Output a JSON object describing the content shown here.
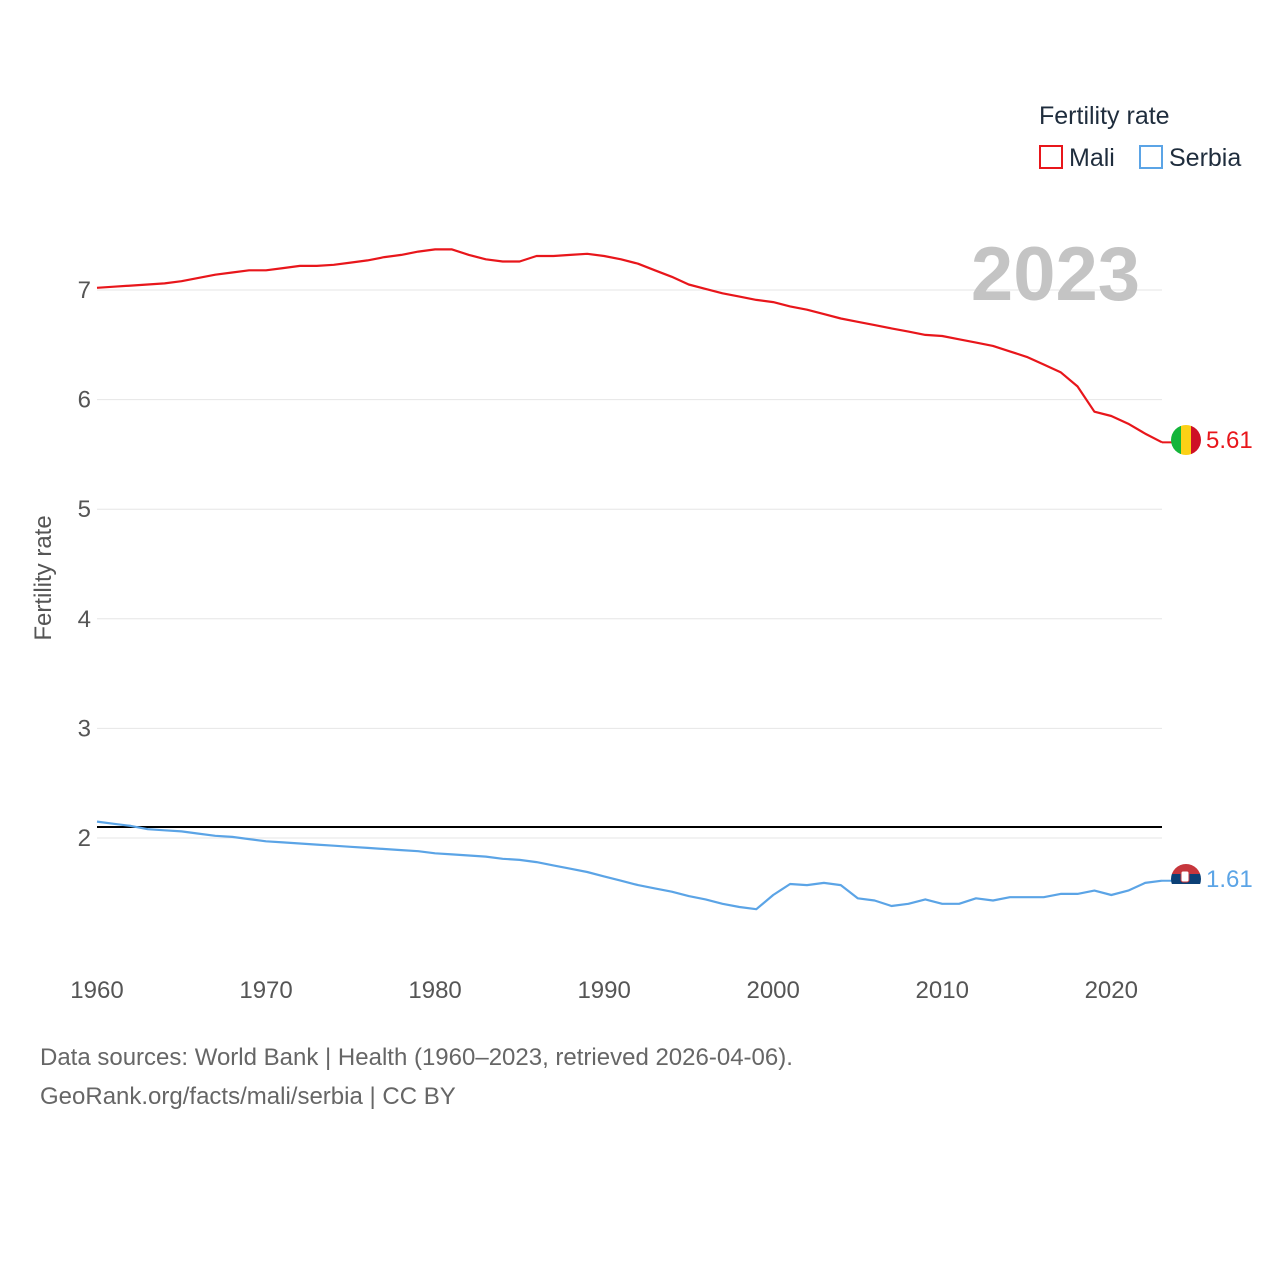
{
  "chart_data": {
    "type": "line",
    "legend_title": "Fertility rate",
    "ylabel": "Fertility rate",
    "xlabel": "",
    "current_year_label": "2023",
    "xlim": [
      1960,
      2023
    ],
    "ylim": [
      1,
      7.4
    ],
    "y_ticks": [
      2,
      3,
      4,
      5,
      6,
      7
    ],
    "x_ticks": [
      1960,
      1970,
      1980,
      1990,
      2000,
      2010,
      2020
    ],
    "reference_line": {
      "value": 2.1
    },
    "legend_position": "top-right",
    "x": [
      1960,
      1961,
      1962,
      1963,
      1964,
      1965,
      1966,
      1967,
      1968,
      1969,
      1970,
      1971,
      1972,
      1973,
      1974,
      1975,
      1976,
      1977,
      1978,
      1979,
      1980,
      1981,
      1982,
      1983,
      1984,
      1985,
      1986,
      1987,
      1988,
      1989,
      1990,
      1991,
      1992,
      1993,
      1994,
      1995,
      1996,
      1997,
      1998,
      1999,
      2000,
      2001,
      2002,
      2003,
      2004,
      2005,
      2006,
      2007,
      2008,
      2009,
      2010,
      2011,
      2012,
      2013,
      2014,
      2015,
      2016,
      2017,
      2018,
      2019,
      2020,
      2021,
      2022,
      2023
    ],
    "series": [
      {
        "name": "Mali",
        "color": "#e8161b",
        "end_label": "5.61",
        "flag_icon": "mali-flag-icon",
        "values": [
          7.02,
          7.03,
          7.04,
          7.05,
          7.06,
          7.08,
          7.11,
          7.14,
          7.16,
          7.18,
          7.18,
          7.2,
          7.22,
          7.22,
          7.23,
          7.25,
          7.27,
          7.3,
          7.32,
          7.35,
          7.37,
          7.37,
          7.32,
          7.28,
          7.26,
          7.26,
          7.31,
          7.31,
          7.32,
          7.33,
          7.31,
          7.28,
          7.24,
          7.18,
          7.12,
          7.05,
          7.01,
          6.97,
          6.94,
          6.91,
          6.89,
          6.85,
          6.82,
          6.78,
          6.74,
          6.71,
          6.68,
          6.65,
          6.62,
          6.59,
          6.58,
          6.55,
          6.52,
          6.49,
          6.44,
          6.39,
          6.32,
          6.25,
          6.12,
          5.89,
          5.85,
          5.78,
          5.69,
          5.61
        ]
      },
      {
        "name": "Serbia",
        "color": "#5ba4e6",
        "end_label": "1.61",
        "flag_icon": "serbia-flag-icon",
        "values": [
          2.15,
          2.13,
          2.11,
          2.08,
          2.07,
          2.06,
          2.04,
          2.02,
          2.01,
          1.99,
          1.97,
          1.96,
          1.95,
          1.94,
          1.93,
          1.92,
          1.91,
          1.9,
          1.89,
          1.88,
          1.86,
          1.85,
          1.84,
          1.83,
          1.81,
          1.8,
          1.78,
          1.75,
          1.72,
          1.69,
          1.65,
          1.61,
          1.57,
          1.54,
          1.51,
          1.47,
          1.44,
          1.4,
          1.37,
          1.35,
          1.48,
          1.58,
          1.57,
          1.59,
          1.57,
          1.45,
          1.43,
          1.38,
          1.4,
          1.44,
          1.4,
          1.4,
          1.45,
          1.43,
          1.46,
          1.46,
          1.46,
          1.49,
          1.49,
          1.52,
          1.48,
          1.52,
          1.59,
          1.61
        ]
      }
    ]
  },
  "footer": {
    "line1": "Data sources: World Bank | Health (1960–2023, retrieved 2026-04-06).",
    "line2": "GeoRank.org/facts/mali/serbia | CC BY"
  }
}
